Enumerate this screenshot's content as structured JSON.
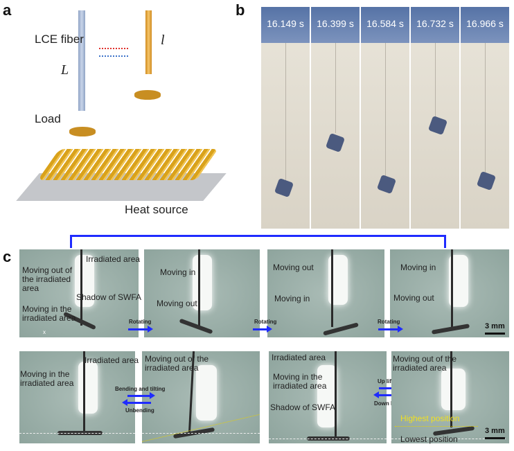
{
  "panel_a": {
    "label": "a",
    "fiber_label": "LCE fiber",
    "long_length": "L",
    "short_length": "l",
    "load_label": "Load",
    "heat_label": "Heat source",
    "colors": {
      "fiber": "#a9bbd6",
      "contracted_fiber": "#e7a93f",
      "coil": "#d9a21b",
      "forward_arrow": "#e0302b",
      "back_arrow": "#3d72c9"
    }
  },
  "panel_b": {
    "label": "b",
    "frames": [
      "16.149 s",
      "16.399 s",
      "16.584 s",
      "16.732 s",
      "16.966 s"
    ]
  },
  "panel_c": {
    "label": "c",
    "row1": [
      {
        "labels": [
          "Irradiated area",
          "Moving out of the irradiated area",
          "Shadow of SWFA",
          "Moving in the irradiated area"
        ],
        "axis": "x"
      },
      {
        "labels": [
          "Moving in",
          "Moving out"
        ]
      },
      {
        "labels": [
          "Moving out",
          "Moving in"
        ]
      },
      {
        "labels": [
          "Moving in",
          "Moving out"
        ]
      }
    ],
    "row1_arrows": [
      "Rotating",
      "Rotating",
      "Rotating"
    ],
    "row2": [
      {
        "labels": [
          "Irradiated area",
          "Moving in the irradiated area"
        ]
      },
      {
        "labels": [
          "Moving out of the irradiated area"
        ]
      },
      {
        "labels": [
          "Irradiated area",
          "Moving in the irradiated area",
          "Shadow of SWFA"
        ]
      },
      {
        "labels": [
          "Moving out of the irradiated area",
          "Highest position",
          "Lowest position"
        ]
      }
    ],
    "row2_arrows": {
      "forward1": "Bending and tilting",
      "back1": "Unbending",
      "forward2": "Up lifting",
      "back2": "Down lifting"
    },
    "scale_bar": "3 mm"
  }
}
